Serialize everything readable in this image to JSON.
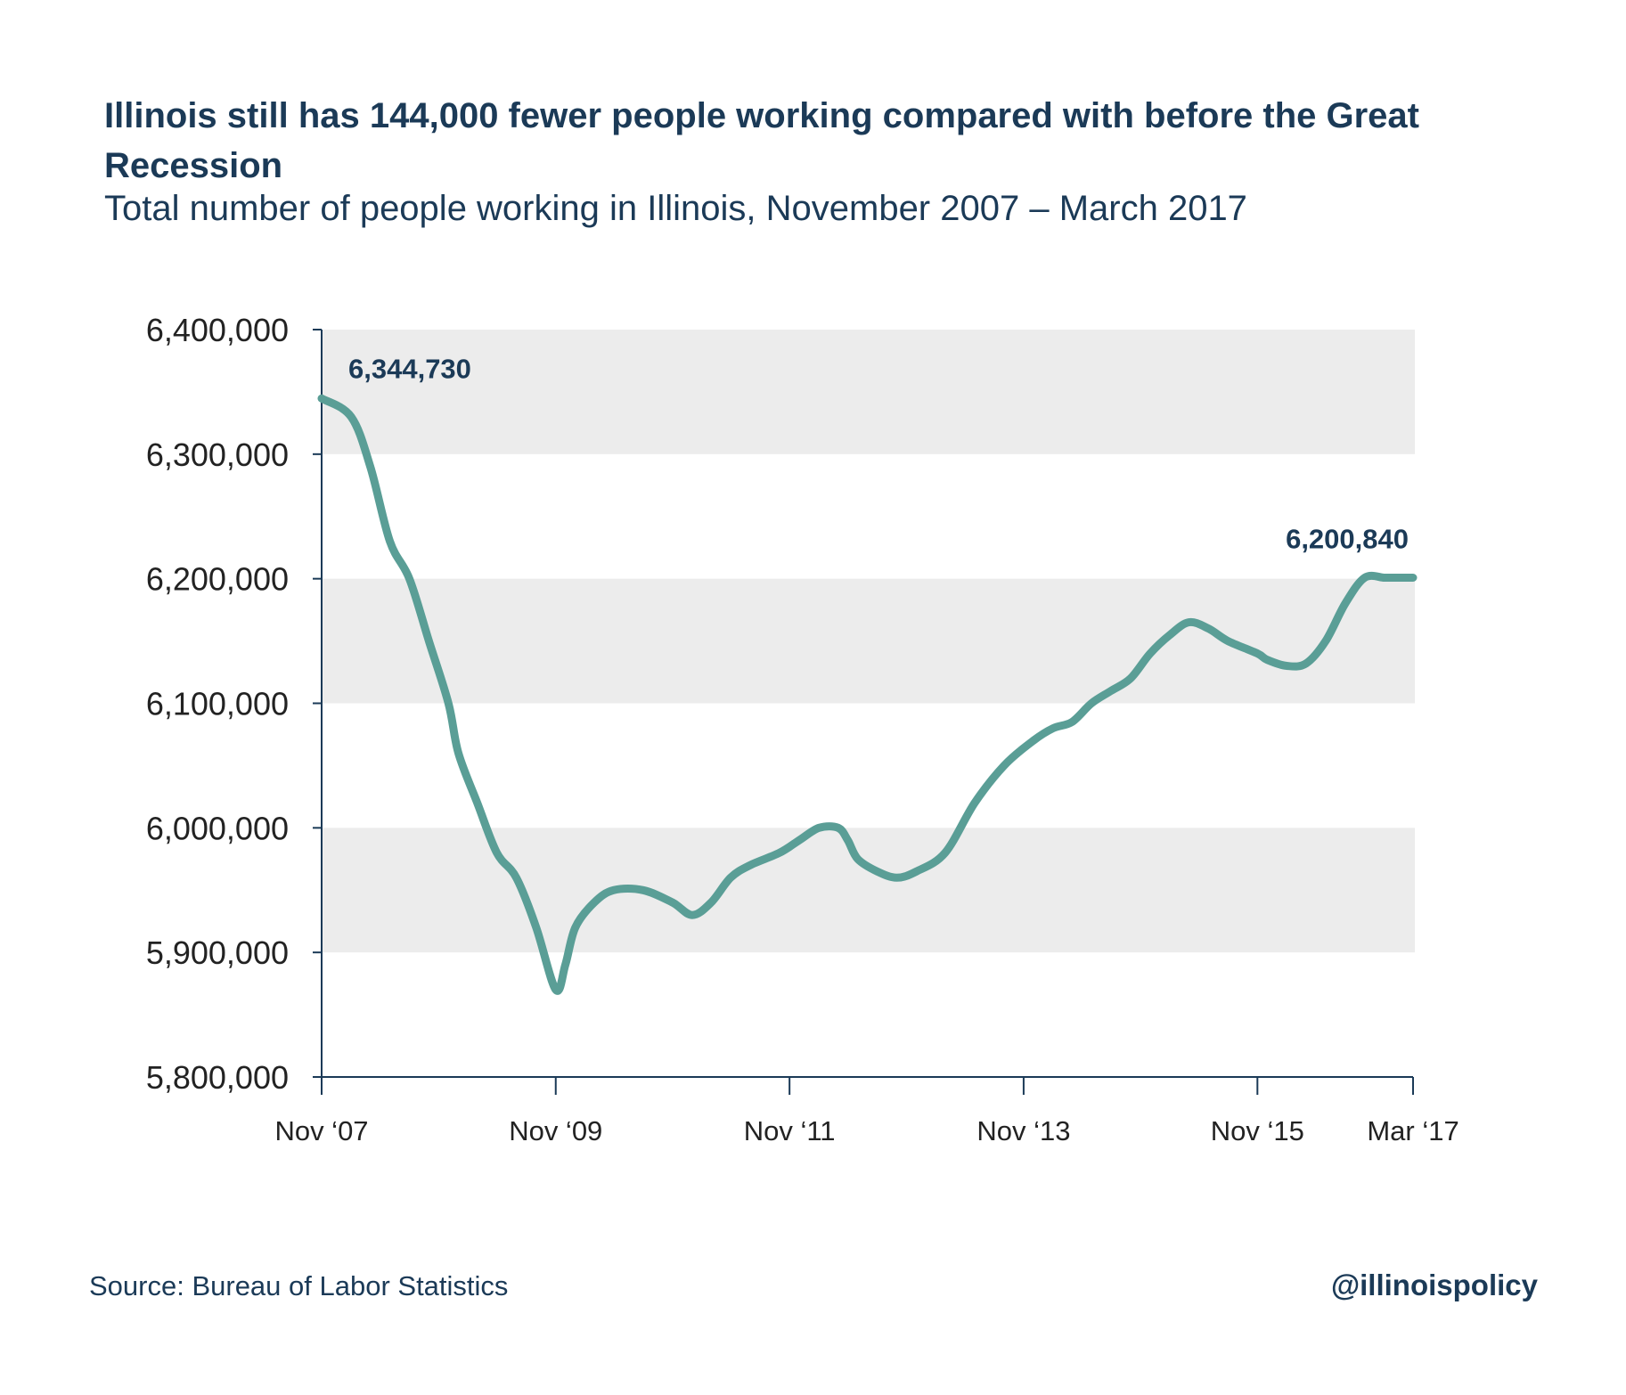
{
  "chart_data": {
    "type": "line",
    "title": "Illinois still has 144,000 fewer people working compared with before the Great Recession",
    "subtitle": "Total number of people working in Illinois, November 2007 – March 2017",
    "xlabel": "",
    "ylabel": "",
    "ylim": [
      5800000,
      6400000
    ],
    "y_ticks": [
      6400000,
      6300000,
      6200000,
      6100000,
      6000000,
      5900000,
      5800000
    ],
    "y_tick_labels": [
      "6,400,000",
      "6,300,000",
      "6,200,000",
      "6,100,000",
      "6,000,000",
      "5,900,000",
      "5,800,000"
    ],
    "x_ticks": [
      "2007-11",
      "2009-11",
      "2011-11",
      "2013-11",
      "2015-11",
      "2017-03"
    ],
    "x_tick_labels": [
      "Nov ‘07",
      "Nov ‘09",
      "Nov ‘11",
      "Nov ‘13",
      "Nov ‘15",
      "Mar ‘17"
    ],
    "grid": "alternating horizontal bands",
    "band_color": "#ececec",
    "line_color": "#5a9e96",
    "text_color": "#1b3a57",
    "series": [
      {
        "x": [
          "2007-11",
          "2008-02",
          "2008-04",
          "2008-06",
          "2008-08",
          "2008-10",
          "2008-12",
          "2009-01",
          "2009-03",
          "2009-05",
          "2009-07",
          "2009-09",
          "2009-11",
          "2009-12",
          "2010-01",
          "2010-03",
          "2010-05",
          "2010-08",
          "2010-11",
          "2011-01",
          "2011-03",
          "2011-05",
          "2011-07",
          "2011-10",
          "2011-12",
          "2012-02",
          "2012-04",
          "2012-05",
          "2012-06",
          "2012-08",
          "2012-10",
          "2012-12",
          "2013-03",
          "2013-06",
          "2013-09",
          "2013-12",
          "2014-02",
          "2014-04",
          "2014-06",
          "2014-08",
          "2014-10",
          "2014-12",
          "2015-02",
          "2015-04",
          "2015-06",
          "2015-08",
          "2015-11",
          "2015-12",
          "2016-02",
          "2016-04",
          "2016-06",
          "2016-08",
          "2016-10",
          "2016-12",
          "2017-01",
          "2017-03"
        ],
        "values": [
          6344730,
          6330000,
          6290000,
          6230000,
          6200000,
          6150000,
          6100000,
          6060000,
          6020000,
          5980000,
          5960000,
          5920000,
          5870000,
          5890000,
          5920000,
          5940000,
          5950000,
          5950000,
          5940000,
          5930000,
          5940000,
          5960000,
          5970000,
          5980000,
          5990000,
          6000000,
          6000000,
          5990000,
          5975000,
          5965000,
          5960000,
          5965000,
          5980000,
          6020000,
          6050000,
          6070000,
          6080000,
          6085000,
          6100000,
          6110000,
          6120000,
          6140000,
          6155000,
          6165000,
          6160000,
          6150000,
          6140000,
          6135000,
          6130000,
          6132000,
          6150000,
          6180000,
          6200840,
          6200840,
          6200840,
          6200840
        ]
      }
    ],
    "annotations": [
      {
        "x": "2007-11",
        "value": 6344730,
        "label": "6,344,730"
      },
      {
        "x": "2017-03",
        "value": 6200840,
        "label": "6,200,840"
      }
    ]
  },
  "header": {
    "title": "Illinois still has 144,000 fewer people working compared with before the Great Recession",
    "subtitle": "Total number of people working in Illinois, November 2007 – March 2017"
  },
  "footer": {
    "source": "Source:  Bureau of Labor Statistics",
    "handle": "@illinoispolicy"
  }
}
